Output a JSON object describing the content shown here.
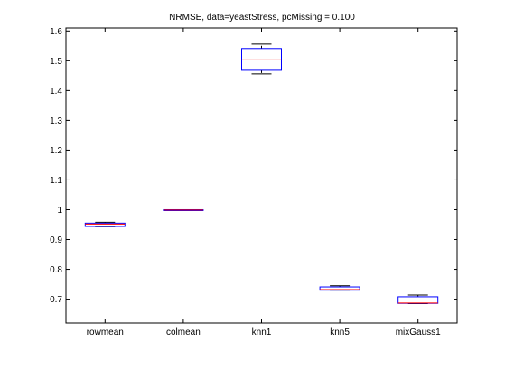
{
  "chart_data": {
    "type": "boxplot",
    "title": "NRMSE, data=yeastStress, pcMissing = 0.100",
    "xlabel": "",
    "ylabel": "",
    "ylim": [
      0.62,
      1.61
    ],
    "yticks": [
      "0.7",
      "0.8",
      "0.9",
      "1",
      "1.1",
      "1.2",
      "1.3",
      "1.4",
      "1.5",
      "1.6"
    ],
    "grid": false,
    "categories": [
      "rowmean",
      "colmean",
      "knn1",
      "knn5",
      "mixGauss1"
    ],
    "boxes": [
      {
        "category": "rowmean",
        "min": 0.943,
        "q1": 0.944,
        "median": 0.952,
        "q3": 0.955,
        "max": 0.958
      },
      {
        "category": "colmean",
        "min": 0.998,
        "q1": 0.998,
        "median": 0.999,
        "q3": 1.0,
        "max": 1.0
      },
      {
        "category": "knn1",
        "min": 1.456,
        "q1": 1.468,
        "median": 1.503,
        "q3": 1.541,
        "max": 1.556
      },
      {
        "category": "knn5",
        "min": 0.73,
        "q1": 0.73,
        "median": 0.732,
        "q3": 0.741,
        "max": 0.745
      },
      {
        "category": "mixGauss1",
        "min": 0.685,
        "q1": 0.686,
        "median": 0.687,
        "q3": 0.708,
        "max": 0.714
      }
    ],
    "colors": {
      "box": "#0000ff",
      "median": "#ff0000",
      "whisker": "#000000",
      "axis": "#000000"
    }
  }
}
